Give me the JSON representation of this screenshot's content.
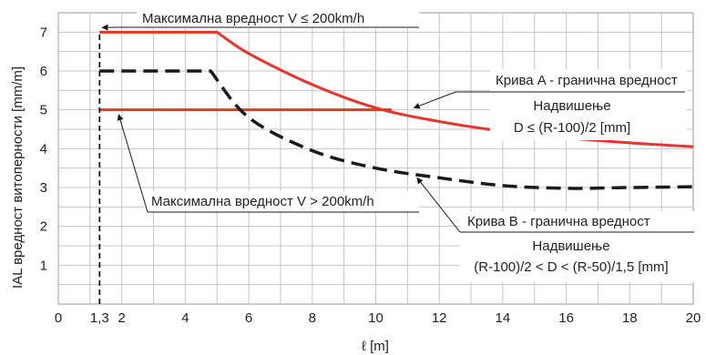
{
  "chart_data": {
    "type": "line",
    "xlabel": "ℓ [m]",
    "ylabel": "IAL вредност витоперности [mm/m]",
    "xlim": [
      0,
      20
    ],
    "ylim": [
      0,
      7.5
    ],
    "x_ticks": [
      {
        "value": 0,
        "label": "0"
      },
      {
        "value": 1.3,
        "label": "1,3"
      },
      {
        "value": 2,
        "label": "2"
      },
      {
        "value": 4,
        "label": "4"
      },
      {
        "value": 6,
        "label": "6"
      },
      {
        "value": 8,
        "label": "8"
      },
      {
        "value": 10,
        "label": "10"
      },
      {
        "value": 12,
        "label": "12"
      },
      {
        "value": 14,
        "label": "14"
      },
      {
        "value": 16,
        "label": "16"
      },
      {
        "value": 18,
        "label": "18"
      },
      {
        "value": 20,
        "label": "20"
      }
    ],
    "y_ticks": [
      {
        "value": 1,
        "label": "1"
      },
      {
        "value": 2,
        "label": "2"
      },
      {
        "value": 3,
        "label": "3"
      },
      {
        "value": 4,
        "label": "4"
      },
      {
        "value": 5,
        "label": "5"
      },
      {
        "value": 6,
        "label": "6"
      },
      {
        "value": 7,
        "label": "7"
      }
    ],
    "grid": true,
    "series": [
      {
        "key": "curve_a",
        "color": "#e8352b",
        "style": "solid",
        "x": [
          1.3,
          5,
          6,
          8,
          10,
          12,
          14,
          16,
          18,
          20
        ],
        "y": [
          7,
          7,
          6.45,
          5.65,
          5.05,
          4.7,
          4.45,
          4.28,
          4.15,
          4.05
        ]
      },
      {
        "key": "limit_5",
        "color": "#e8352b",
        "style": "solid",
        "x": [
          1.3,
          10.5
        ],
        "y": [
          5,
          5
        ]
      },
      {
        "key": "curve_b",
        "color": "#1a1a1a",
        "style": "dashed",
        "x": [
          1.3,
          4.8,
          6,
          8,
          10,
          12,
          14,
          16,
          18,
          20
        ],
        "y": [
          6,
          6,
          4.8,
          3.95,
          3.5,
          3.25,
          3.05,
          2.98,
          3.0,
          3.02
        ]
      },
      {
        "key": "vertical_1_3",
        "color": "#1a1a1a",
        "style": "dashed-thin",
        "x": [
          1.3,
          1.3
        ],
        "y": [
          0,
          7
        ]
      }
    ],
    "annotations": {
      "max_low": {
        "text": "Максимална вредност V ≤ 200km/h",
        "arrow_to": [
          1.3,
          7
        ]
      },
      "curve_a_label": "Крива A - гранична вредност",
      "curve_a_cant_1": "Надвишење",
      "curve_a_cant_2": "D ≤ (R-100)/2 [mm]",
      "curve_a_arrow_to": [
        11.2,
        5
      ],
      "max_high": {
        "text": "Максимална вредност V > 200km/h",
        "arrow_to": [
          1.9,
          5
        ]
      },
      "curve_b_label": "Крива B - гранична вредност",
      "curve_b_cant_1": "Надвишење",
      "curve_b_cant_2": "(R-100)/2 < D < (R-50)/1,5 [mm]",
      "curve_b_arrow_to": [
        11.3,
        3.3
      ]
    }
  }
}
